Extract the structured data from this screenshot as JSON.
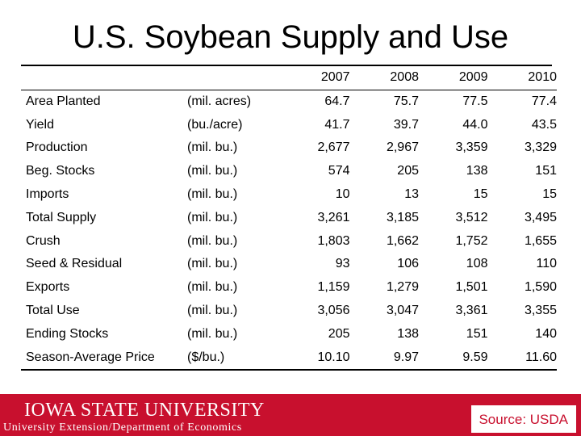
{
  "title": "U.S. Soybean Supply and Use",
  "table": {
    "years": [
      "2007",
      "2008",
      "2009",
      "2010"
    ],
    "rows": [
      {
        "label": "Area Planted",
        "unit": "(mil. acres)",
        "values": [
          "64.7",
          "75.7",
          "77.5",
          "77.4"
        ]
      },
      {
        "label": "Yield",
        "unit": "(bu./acre)",
        "values": [
          "41.7",
          "39.7",
          "44.0",
          "43.5"
        ]
      },
      {
        "label": "Production",
        "unit": "(mil. bu.)",
        "values": [
          "2,677",
          "2,967",
          "3,359",
          "3,329"
        ]
      },
      {
        "label": "Beg. Stocks",
        "unit": "(mil. bu.)",
        "values": [
          "574",
          "205",
          "138",
          "151"
        ]
      },
      {
        "label": "Imports",
        "unit": "(mil. bu.)",
        "values": [
          "10",
          "13",
          "15",
          "15"
        ]
      },
      {
        "label": "Total Supply",
        "unit": "(mil. bu.)",
        "values": [
          "3,261",
          "3,185",
          "3,512",
          "3,495"
        ]
      },
      {
        "label": "Crush",
        "unit": "(mil. bu.)",
        "values": [
          "1,803",
          "1,662",
          "1,752",
          "1,655"
        ]
      },
      {
        "label": "Seed & Residual",
        "unit": "(mil. bu.)",
        "values": [
          "93",
          "106",
          "108",
          "110"
        ]
      },
      {
        "label": "Exports",
        "unit": "(mil. bu.)",
        "values": [
          "1,159",
          "1,279",
          "1,501",
          "1,590"
        ]
      },
      {
        "label": "Total Use",
        "unit": "(mil. bu.)",
        "values": [
          "3,056",
          "3,047",
          "3,361",
          "3,355"
        ]
      },
      {
        "label": "Ending Stocks",
        "unit": "(mil. bu.)",
        "values": [
          "205",
          "138",
          "151",
          "140"
        ]
      },
      {
        "label": "Season-Average Price",
        "unit": "($/bu.)",
        "values": [
          "10.10",
          "9.97",
          "9.59",
          "11.60"
        ]
      }
    ]
  },
  "footer": {
    "logo_text": "IOWA STATE UNIVERSITY",
    "subtitle": "University Extension/Department of Economics",
    "source": "Source: USDA"
  },
  "colors": {
    "brand_red": "#c8102e",
    "text": "#000000",
    "background": "#ffffff"
  }
}
